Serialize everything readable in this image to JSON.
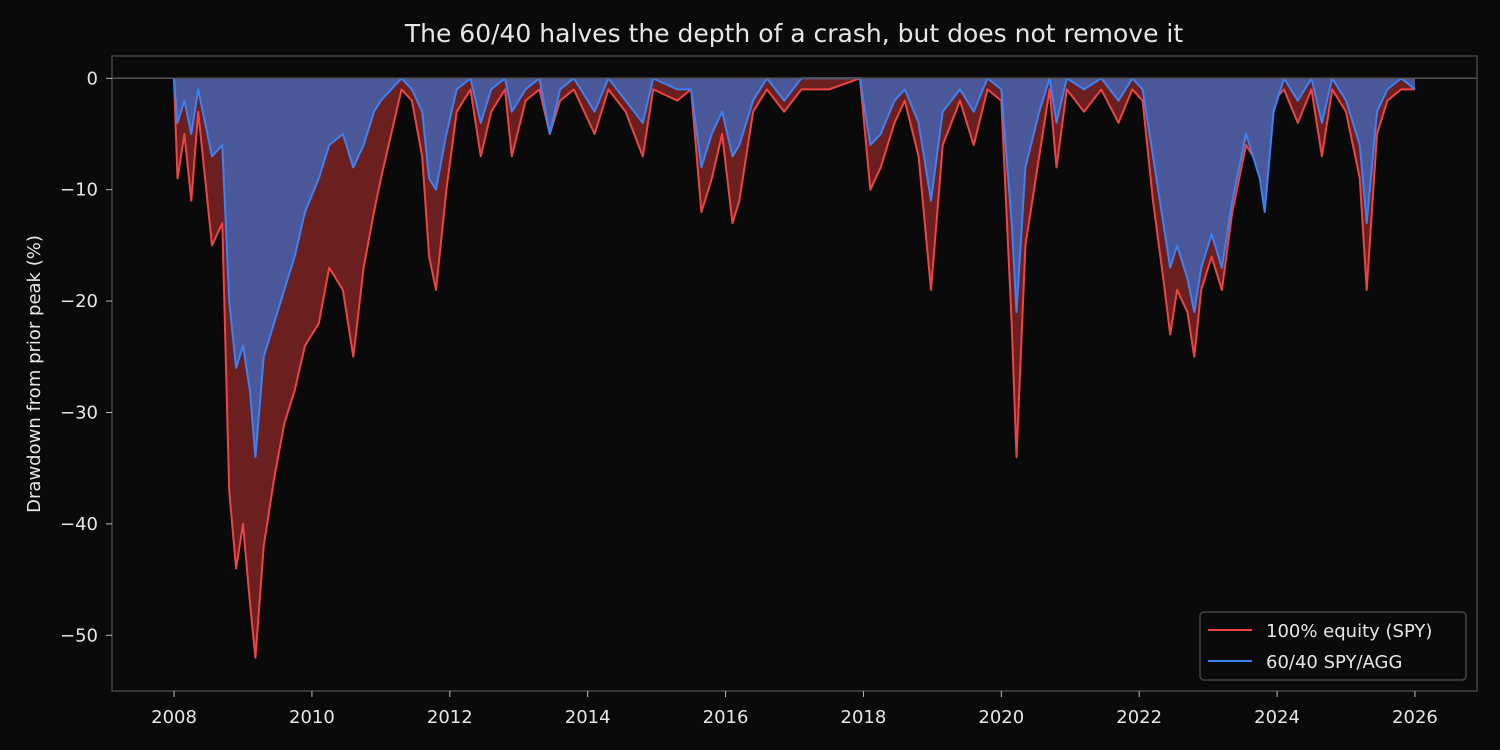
{
  "chart_data": {
    "type": "area",
    "title": "The 60/40 halves the depth of a crash, but does not remove it",
    "xlabel": "",
    "ylabel": "Drawdown from prior peak (%)",
    "xlim": [
      2007.1,
      2026.9
    ],
    "ylim": [
      -55,
      2
    ],
    "xticks": [
      2008,
      2010,
      2012,
      2014,
      2016,
      2018,
      2020,
      2022,
      2024,
      2026
    ],
    "yticks": [
      0,
      -10,
      -20,
      -30,
      -40,
      -50
    ],
    "ytick_labels": [
      "0",
      "−10",
      "−20",
      "−30",
      "−40",
      "−50"
    ],
    "legend_position": "lower-right",
    "series": [
      {
        "name": "100% equity (SPY)",
        "color": "#ef4444",
        "fill": "#6b1f1f",
        "points": [
          [
            2008.0,
            0
          ],
          [
            2008.05,
            -9
          ],
          [
            2008.15,
            -5
          ],
          [
            2008.25,
            -11
          ],
          [
            2008.35,
            -3
          ],
          [
            2008.45,
            -9
          ],
          [
            2008.55,
            -15
          ],
          [
            2008.7,
            -13
          ],
          [
            2008.8,
            -37
          ],
          [
            2008.9,
            -44
          ],
          [
            2009.0,
            -40
          ],
          [
            2009.1,
            -47
          ],
          [
            2009.18,
            -52
          ],
          [
            2009.3,
            -42
          ],
          [
            2009.45,
            -36
          ],
          [
            2009.6,
            -31
          ],
          [
            2009.75,
            -28
          ],
          [
            2009.9,
            -24
          ],
          [
            2010.1,
            -22
          ],
          [
            2010.25,
            -17
          ],
          [
            2010.45,
            -19
          ],
          [
            2010.6,
            -25
          ],
          [
            2010.75,
            -17
          ],
          [
            2010.9,
            -12
          ],
          [
            2011.0,
            -9
          ],
          [
            2011.15,
            -5
          ],
          [
            2011.3,
            -1
          ],
          [
            2011.45,
            -2
          ],
          [
            2011.6,
            -7
          ],
          [
            2011.7,
            -16
          ],
          [
            2011.8,
            -19
          ],
          [
            2011.95,
            -10
          ],
          [
            2012.1,
            -3
          ],
          [
            2012.3,
            -1
          ],
          [
            2012.45,
            -7
          ],
          [
            2012.6,
            -3
          ],
          [
            2012.8,
            -1
          ],
          [
            2012.9,
            -7
          ],
          [
            2013.1,
            -2
          ],
          [
            2013.3,
            -1
          ],
          [
            2013.45,
            -5
          ],
          [
            2013.6,
            -2
          ],
          [
            2013.8,
            -1
          ],
          [
            2014.1,
            -5
          ],
          [
            2014.3,
            -1
          ],
          [
            2014.55,
            -3
          ],
          [
            2014.8,
            -7
          ],
          [
            2014.95,
            -1
          ],
          [
            2015.3,
            -2
          ],
          [
            2015.5,
            -1
          ],
          [
            2015.65,
            -12
          ],
          [
            2015.8,
            -9
          ],
          [
            2015.95,
            -5
          ],
          [
            2016.1,
            -13
          ],
          [
            2016.2,
            -11
          ],
          [
            2016.4,
            -3
          ],
          [
            2016.6,
            -1
          ],
          [
            2016.85,
            -3
          ],
          [
            2017.1,
            -1
          ],
          [
            2017.5,
            -1
          ],
          [
            2017.95,
            0
          ],
          [
            2018.1,
            -10
          ],
          [
            2018.25,
            -8
          ],
          [
            2018.45,
            -4
          ],
          [
            2018.6,
            -2
          ],
          [
            2018.8,
            -7
          ],
          [
            2018.98,
            -19
          ],
          [
            2019.15,
            -6
          ],
          [
            2019.4,
            -2
          ],
          [
            2019.6,
            -6
          ],
          [
            2019.8,
            -1
          ],
          [
            2020.0,
            -2
          ],
          [
            2020.15,
            -22
          ],
          [
            2020.22,
            -34
          ],
          [
            2020.35,
            -15
          ],
          [
            2020.55,
            -7
          ],
          [
            2020.7,
            -1
          ],
          [
            2020.8,
            -8
          ],
          [
            2020.95,
            -1
          ],
          [
            2021.2,
            -3
          ],
          [
            2021.45,
            -1
          ],
          [
            2021.7,
            -4
          ],
          [
            2021.9,
            -1
          ],
          [
            2022.05,
            -2
          ],
          [
            2022.2,
            -11
          ],
          [
            2022.35,
            -18
          ],
          [
            2022.45,
            -23
          ],
          [
            2022.55,
            -19
          ],
          [
            2022.7,
            -21
          ],
          [
            2022.8,
            -25
          ],
          [
            2022.9,
            -19
          ],
          [
            2023.05,
            -16
          ],
          [
            2023.2,
            -19
          ],
          [
            2023.35,
            -12
          ],
          [
            2023.55,
            -6
          ],
          [
            2023.75,
            -8
          ],
          [
            2023.82,
            -10
          ],
          [
            2023.95,
            -2
          ],
          [
            2024.1,
            -1
          ],
          [
            2024.3,
            -4
          ],
          [
            2024.5,
            -1
          ],
          [
            2024.65,
            -7
          ],
          [
            2024.8,
            -1
          ],
          [
            2025.0,
            -3
          ],
          [
            2025.2,
            -9
          ],
          [
            2025.3,
            -19
          ],
          [
            2025.45,
            -5
          ],
          [
            2025.6,
            -2
          ],
          [
            2025.8,
            -1
          ],
          [
            2026.0,
            -1
          ]
        ]
      },
      {
        "name": "60/40 SPY/AGG",
        "color": "#3b82f6",
        "fill": "#4a5899",
        "points": [
          [
            2008.0,
            0
          ],
          [
            2008.05,
            -4
          ],
          [
            2008.15,
            -2
          ],
          [
            2008.25,
            -5
          ],
          [
            2008.35,
            -1
          ],
          [
            2008.45,
            -4
          ],
          [
            2008.55,
            -7
          ],
          [
            2008.7,
            -6
          ],
          [
            2008.8,
            -20
          ],
          [
            2008.9,
            -26
          ],
          [
            2009.0,
            -24
          ],
          [
            2009.1,
            -28
          ],
          [
            2009.18,
            -34
          ],
          [
            2009.3,
            -25
          ],
          [
            2009.45,
            -22
          ],
          [
            2009.6,
            -19
          ],
          [
            2009.75,
            -16
          ],
          [
            2009.9,
            -12
          ],
          [
            2010.1,
            -9
          ],
          [
            2010.25,
            -6
          ],
          [
            2010.45,
            -5
          ],
          [
            2010.6,
            -8
          ],
          [
            2010.75,
            -6
          ],
          [
            2010.9,
            -3
          ],
          [
            2011.0,
            -2
          ],
          [
            2011.15,
            -1
          ],
          [
            2011.3,
            0
          ],
          [
            2011.45,
            -1
          ],
          [
            2011.6,
            -3
          ],
          [
            2011.7,
            -9
          ],
          [
            2011.8,
            -10
          ],
          [
            2011.95,
            -5
          ],
          [
            2012.1,
            -1
          ],
          [
            2012.3,
            0
          ],
          [
            2012.45,
            -4
          ],
          [
            2012.6,
            -1
          ],
          [
            2012.8,
            0
          ],
          [
            2012.9,
            -3
          ],
          [
            2013.1,
            -1
          ],
          [
            2013.3,
            0
          ],
          [
            2013.45,
            -5
          ],
          [
            2013.6,
            -1
          ],
          [
            2013.8,
            0
          ],
          [
            2014.1,
            -3
          ],
          [
            2014.3,
            0
          ],
          [
            2014.55,
            -2
          ],
          [
            2014.8,
            -4
          ],
          [
            2014.95,
            0
          ],
          [
            2015.3,
            -1
          ],
          [
            2015.5,
            -1
          ],
          [
            2015.65,
            -8
          ],
          [
            2015.8,
            -5
          ],
          [
            2015.95,
            -3
          ],
          [
            2016.1,
            -7
          ],
          [
            2016.2,
            -6
          ],
          [
            2016.4,
            -2
          ],
          [
            2016.6,
            0
          ],
          [
            2016.85,
            -2
          ],
          [
            2017.1,
            0
          ],
          [
            2017.5,
            0
          ],
          [
            2017.95,
            0
          ],
          [
            2018.1,
            -6
          ],
          [
            2018.25,
            -5
          ],
          [
            2018.45,
            -2
          ],
          [
            2018.6,
            -1
          ],
          [
            2018.8,
            -4
          ],
          [
            2018.98,
            -11
          ],
          [
            2019.15,
            -3
          ],
          [
            2019.4,
            -1
          ],
          [
            2019.6,
            -3
          ],
          [
            2019.8,
            0
          ],
          [
            2020.0,
            -1
          ],
          [
            2020.15,
            -13
          ],
          [
            2020.22,
            -21
          ],
          [
            2020.35,
            -8
          ],
          [
            2020.55,
            -3
          ],
          [
            2020.7,
            0
          ],
          [
            2020.8,
            -4
          ],
          [
            2020.95,
            0
          ],
          [
            2021.2,
            -1
          ],
          [
            2021.45,
            0
          ],
          [
            2021.7,
            -2
          ],
          [
            2021.9,
            0
          ],
          [
            2022.05,
            -1
          ],
          [
            2022.2,
            -7
          ],
          [
            2022.35,
            -13
          ],
          [
            2022.45,
            -17
          ],
          [
            2022.55,
            -15
          ],
          [
            2022.7,
            -18
          ],
          [
            2022.8,
            -21
          ],
          [
            2022.9,
            -17
          ],
          [
            2023.05,
            -14
          ],
          [
            2023.2,
            -17
          ],
          [
            2023.35,
            -11
          ],
          [
            2023.55,
            -5
          ],
          [
            2023.75,
            -9
          ],
          [
            2023.82,
            -12
          ],
          [
            2023.95,
            -3
          ],
          [
            2024.1,
            0
          ],
          [
            2024.3,
            -2
          ],
          [
            2024.5,
            0
          ],
          [
            2024.65,
            -4
          ],
          [
            2024.8,
            0
          ],
          [
            2025.0,
            -2
          ],
          [
            2025.2,
            -6
          ],
          [
            2025.3,
            -13
          ],
          [
            2025.45,
            -3
          ],
          [
            2025.6,
            -1
          ],
          [
            2025.8,
            0
          ],
          [
            2026.0,
            -1
          ]
        ]
      }
    ]
  }
}
